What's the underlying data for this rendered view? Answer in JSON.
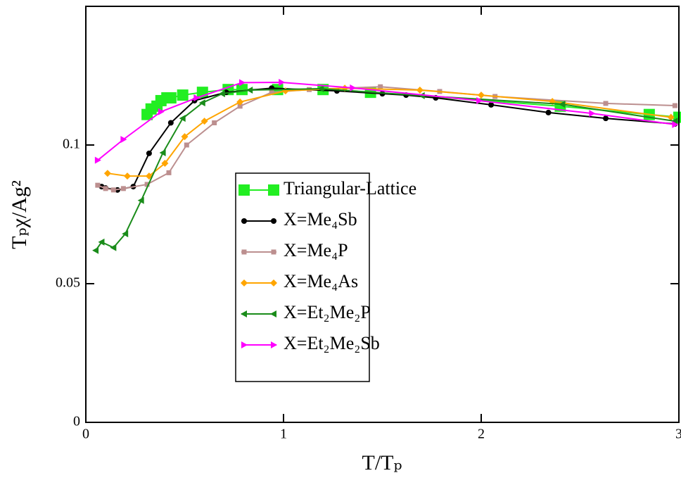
{
  "chart_data": {
    "type": "line",
    "xlabel": "T/Tₚ",
    "ylabel": "Tₚχ/Ag²",
    "xlim": [
      0,
      3
    ],
    "ylim": [
      0,
      0.15
    ],
    "xticks": [
      0,
      1,
      2,
      3
    ],
    "yticks": [
      0,
      0.05,
      0.1
    ],
    "legend": "center",
    "series": [
      {
        "name": "Triangular-Lattice",
        "color": "#22ee22",
        "marker": "square-large",
        "x": [
          0.31,
          0.33,
          0.36,
          0.38,
          0.41,
          0.43,
          0.49,
          0.59,
          0.72,
          0.79,
          0.97,
          1.2,
          1.44,
          2.4,
          2.85,
          3.0
        ],
        "values": [
          0.111,
          0.113,
          0.114,
          0.116,
          0.117,
          0.117,
          0.118,
          0.119,
          0.12,
          0.12,
          0.12,
          0.12,
          0.119,
          0.114,
          0.111,
          0.11
        ]
      },
      {
        "name": "X=Me₄Sb",
        "color": "#000000",
        "marker": "circle",
        "x": [
          0.08,
          0.1,
          0.16,
          0.24,
          0.32,
          0.43,
          0.55,
          0.71,
          0.94,
          1.27,
          1.5,
          1.62,
          1.77,
          2.05,
          2.34,
          2.63,
          2.98
        ],
        "values": [
          0.085,
          0.0845,
          0.0838,
          0.085,
          0.097,
          0.108,
          0.116,
          0.119,
          0.1205,
          0.1195,
          0.1185,
          0.118,
          0.117,
          0.1145,
          0.1117,
          0.1096,
          0.1076
        ]
      },
      {
        "name": "X=Me₄P",
        "color": "#bc8f8f",
        "marker": "square",
        "x": [
          0.06,
          0.1,
          0.14,
          0.19,
          0.31,
          0.42,
          0.51,
          0.65,
          0.78,
          0.94,
          1.13,
          1.49,
          1.79,
          2.07,
          2.63,
          2.98
        ],
        "values": [
          0.0855,
          0.0843,
          0.0838,
          0.0843,
          0.0858,
          0.09,
          0.1,
          0.108,
          0.114,
          0.119,
          0.12,
          0.121,
          0.1193,
          0.1175,
          0.115,
          0.1142
        ]
      },
      {
        "name": "X=Me₄As",
        "color": "#ffa500",
        "marker": "diamond",
        "x": [
          0.11,
          0.21,
          0.32,
          0.4,
          0.5,
          0.6,
          0.78,
          1.01,
          1.31,
          1.69,
          2.0,
          2.36,
          2.96
        ],
        "values": [
          0.0898,
          0.0888,
          0.0888,
          0.0934,
          0.103,
          0.1086,
          0.1155,
          0.1195,
          0.1205,
          0.1198,
          0.118,
          0.1157,
          0.11
        ]
      },
      {
        "name": "X=Et₂Me₂P",
        "color": "#1a8c1a",
        "marker": "triangle-left",
        "x": [
          0.05,
          0.08,
          0.14,
          0.2,
          0.28,
          0.39,
          0.49,
          0.59,
          0.69,
          0.83,
          1.19,
          1.7,
          2.41,
          2.98
        ],
        "values": [
          0.062,
          0.065,
          0.063,
          0.068,
          0.08,
          0.0972,
          0.1096,
          0.1152,
          0.1185,
          0.1198,
          0.1203,
          0.1178,
          0.1147,
          0.1086
        ]
      },
      {
        "name": "X=Et₂Me₂Sb",
        "color": "#ff00ff",
        "marker": "triangle-right",
        "x": [
          0.06,
          0.19,
          0.38,
          0.56,
          0.79,
          0.99,
          1.35,
          1.99,
          2.56,
          2.98
        ],
        "values": [
          0.0945,
          0.102,
          0.112,
          0.117,
          0.1225,
          0.1226,
          0.1206,
          0.116,
          0.1114,
          0.1074
        ]
      }
    ]
  }
}
